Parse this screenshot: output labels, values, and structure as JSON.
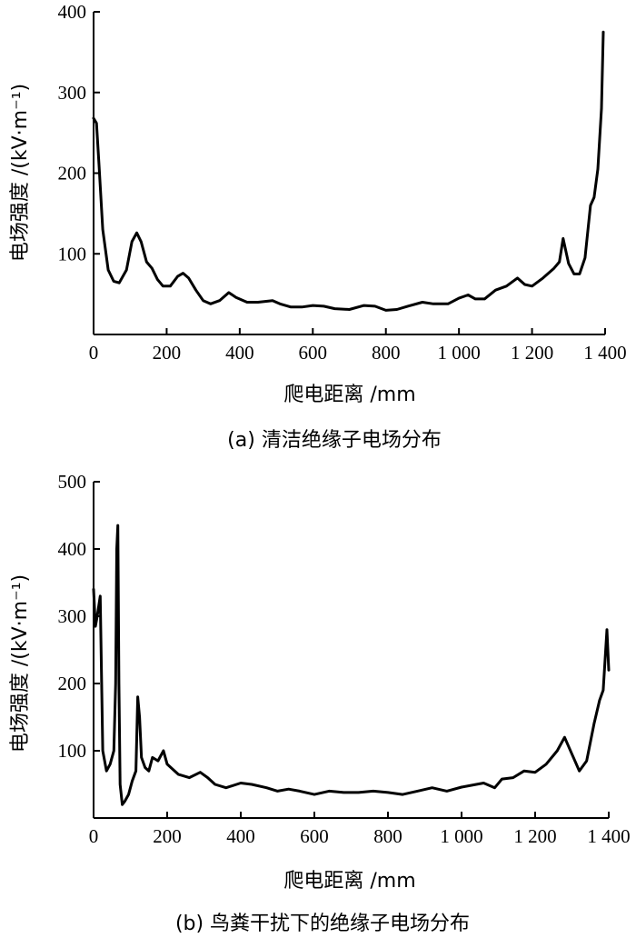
{
  "chart_data": [
    {
      "type": "line",
      "caption": "(a) 清洁绝缘子电场分布",
      "xlabel": "爬电距离 /mm",
      "ylabel": "电场强度 /(kV·m⁻¹)",
      "xlim": [
        0,
        1400
      ],
      "ylim": [
        0,
        400
      ],
      "xticks": [
        0,
        200,
        400,
        600,
        800,
        1000,
        1200,
        1400
      ],
      "xtick_labels": [
        "0",
        "200",
        "400",
        "600",
        "800",
        "1 000",
        "1 200",
        "1 400"
      ],
      "yticks": [
        100,
        200,
        300,
        400
      ],
      "ytick_labels": [
        "100",
        "200",
        "300",
        "400"
      ],
      "x": [
        0,
        8,
        15,
        25,
        40,
        55,
        70,
        90,
        105,
        118,
        130,
        145,
        160,
        175,
        190,
        210,
        230,
        245,
        260,
        280,
        300,
        320,
        345,
        370,
        390,
        420,
        450,
        490,
        510,
        540,
        570,
        600,
        630,
        660,
        700,
        740,
        770,
        800,
        830,
        860,
        900,
        930,
        970,
        1000,
        1025,
        1045,
        1070,
        1100,
        1130,
        1160,
        1180,
        1200,
        1230,
        1260,
        1275,
        1285,
        1300,
        1315,
        1330,
        1345,
        1360,
        1370,
        1380,
        1390,
        1395
      ],
      "y": [
        268,
        262,
        210,
        130,
        80,
        66,
        64,
        80,
        115,
        126,
        115,
        90,
        82,
        68,
        60,
        60,
        72,
        76,
        70,
        55,
        42,
        38,
        42,
        52,
        46,
        40,
        40,
        42,
        38,
        34,
        34,
        36,
        35,
        32,
        31,
        36,
        35,
        30,
        31,
        35,
        40,
        38,
        38,
        45,
        49,
        44,
        44,
        55,
        60,
        70,
        62,
        60,
        70,
        82,
        90,
        119,
        88,
        75,
        75,
        95,
        160,
        170,
        205,
        280,
        375
      ],
      "series": [
        {
          "name": "",
          "color": "#000000"
        }
      ]
    },
    {
      "type": "line",
      "caption": "(b) 鸟粪干扰下的绝缘子电场分布",
      "xlabel": "爬电距离 /mm",
      "ylabel": "电场强度 /(kV·m⁻¹)",
      "xlim": [
        0,
        1400
      ],
      "ylim": [
        0,
        500
      ],
      "xticks": [
        0,
        200,
        400,
        600,
        800,
        1000,
        1200,
        1400
      ],
      "xtick_labels": [
        "0",
        "200",
        "400",
        "600",
        "800",
        "1 000",
        "1 200",
        "1 400"
      ],
      "yticks": [
        100,
        200,
        300,
        400,
        500
      ],
      "ytick_labels": [
        "100",
        "200",
        "300",
        "400",
        "500"
      ],
      "x": [
        0,
        5,
        10,
        18,
        25,
        35,
        45,
        55,
        60,
        63,
        66,
        69,
        72,
        78,
        85,
        95,
        105,
        115,
        120,
        125,
        130,
        140,
        150,
        160,
        175,
        190,
        200,
        210,
        230,
        260,
        290,
        310,
        330,
        360,
        400,
        430,
        470,
        500,
        530,
        560,
        600,
        640,
        680,
        720,
        760,
        800,
        840,
        880,
        920,
        960,
        1000,
        1040,
        1060,
        1090,
        1110,
        1140,
        1170,
        1200,
        1230,
        1260,
        1280,
        1300,
        1320,
        1340,
        1360,
        1375,
        1385,
        1395,
        1400
      ],
      "y": [
        340,
        285,
        300,
        330,
        100,
        70,
        80,
        100,
        200,
        400,
        435,
        200,
        50,
        20,
        25,
        35,
        55,
        70,
        180,
        150,
        90,
        75,
        70,
        90,
        85,
        100,
        80,
        75,
        65,
        60,
        68,
        60,
        50,
        45,
        52,
        50,
        45,
        40,
        43,
        40,
        35,
        40,
        38,
        38,
        40,
        38,
        35,
        40,
        45,
        40,
        46,
        50,
        52,
        45,
        58,
        60,
        70,
        68,
        80,
        100,
        120,
        95,
        70,
        85,
        140,
        175,
        190,
        280,
        220
      ],
      "series": [
        {
          "name": "",
          "color": "#000000"
        }
      ]
    }
  ]
}
